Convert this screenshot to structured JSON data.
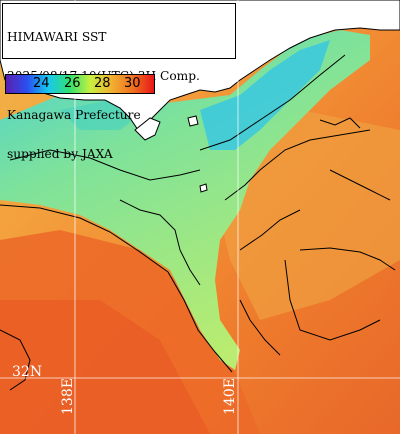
{
  "map": {
    "title_lines": [
      "HIMAWARI SST",
      "2025/08/17 10(UTC) 3H Comp.",
      "Kanagawa Prefecture",
      "supplied by JAXA"
    ],
    "legend": {
      "ticks": [
        "24",
        "26",
        "28",
        "30"
      ],
      "colors": [
        "#5a1fb0",
        "#2a50f0",
        "#18c8f0",
        "#30e070",
        "#c8f040",
        "#f0b030",
        "#f07020",
        "#e81818"
      ]
    },
    "grid_labels": {
      "lat": "32N",
      "lon_left": "138E",
      "lon_right": "140E"
    },
    "colors": {
      "land": "#ffffff",
      "coast": "#000000",
      "warm_sea": "#ef7a2e",
      "mid_sea": "#f0a040",
      "cool_sea": "#7fe0a0",
      "coolest_sea": "#39c8e0",
      "grid": "#ffffff"
    }
  }
}
